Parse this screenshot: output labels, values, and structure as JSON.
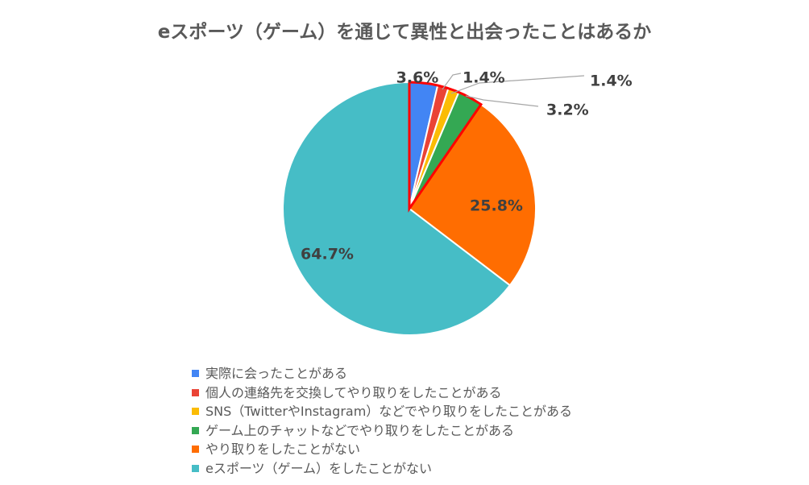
{
  "chart_data": {
    "type": "pie",
    "title": "eスポーツ（ゲーム）を通じて異性と出会ったことはあるか",
    "categories": [
      "実際に会ったことがある",
      "個人の連絡先を交換してやり取りをしたことがある",
      "SNS（TwitterやInstagram）などでやり取りをしたことがある",
      "ゲーム上のチャットなどでやり取りをしたことがある",
      "やり取りをしたことがない",
      "eスポーツ（ゲーム）をしたことがない"
    ],
    "values": [
      3.6,
      1.4,
      1.4,
      3.2,
      25.8,
      64.7
    ],
    "labels": [
      "3.6%",
      "1.4%",
      "1.4%",
      "3.2%",
      "25.8%",
      "64.7%"
    ],
    "colors": [
      "#4285f4",
      "#ea4335",
      "#fbbc04",
      "#34a853",
      "#ff6d01",
      "#46bdc6"
    ],
    "highlight_color": "#ff0000",
    "legend_position": "bottom"
  }
}
